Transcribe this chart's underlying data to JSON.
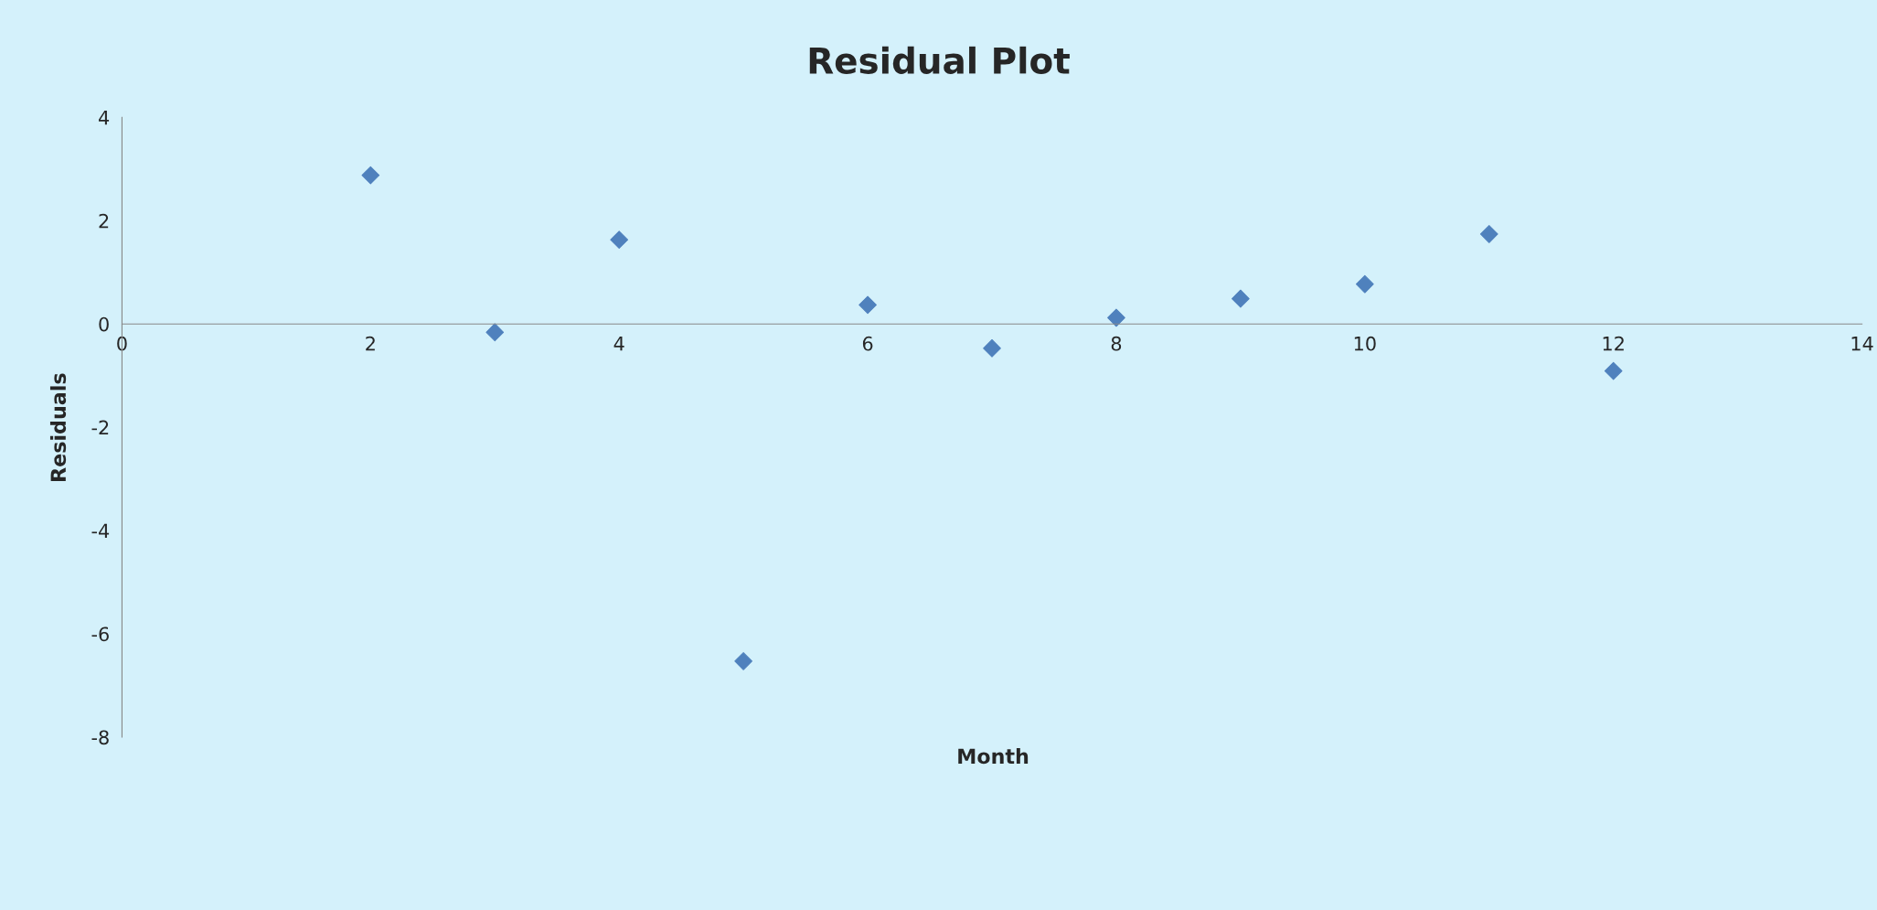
{
  "chart_data": {
    "type": "scatter",
    "title": "Residual Plot",
    "xlabel": "Month",
    "ylabel": "Residuals",
    "x": [
      2,
      3,
      4,
      5,
      6,
      7,
      8,
      9,
      10,
      11,
      12
    ],
    "values": [
      2.88,
      -0.16,
      1.63,
      -6.53,
      0.37,
      -0.47,
      0.12,
      0.49,
      0.77,
      1.74,
      -0.91
    ],
    "color": "#4f81bd",
    "marker": "diamond",
    "grid": false,
    "legend": false,
    "xlim": [
      0,
      14
    ],
    "xticks": [
      0,
      2,
      4,
      6,
      8,
      10,
      12,
      14
    ],
    "ylim": [
      -8,
      4
    ],
    "yticks": [
      -8,
      -6,
      -4,
      -2,
      0,
      2,
      4
    ]
  }
}
